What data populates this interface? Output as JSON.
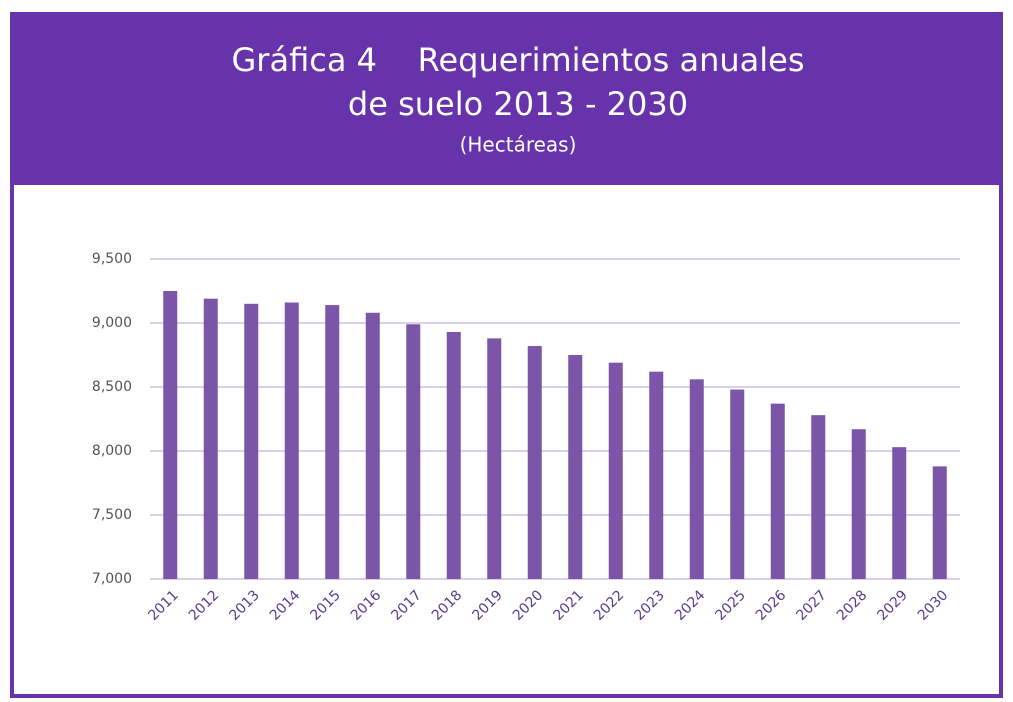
{
  "chart_data": {
    "type": "bar",
    "title": [
      "Gráfica 4    Requerimientos anuales",
      "de suelo 2013 - 2030"
    ],
    "subtitle": "(Hectáreas)",
    "categories": [
      "2011",
      "2012",
      "2013",
      "2014",
      "2015",
      "2016",
      "2017",
      "2018",
      "2019",
      "2020",
      "2021",
      "2022",
      "2023",
      "2024",
      "2025",
      "2026",
      "2027",
      "2028",
      "2029",
      "2030"
    ],
    "values": [
      9250,
      9190,
      9150,
      9160,
      9140,
      9080,
      8990,
      8930,
      8880,
      8820,
      8750,
      8690,
      8620,
      8560,
      8480,
      8370,
      8280,
      8170,
      8030,
      7880
    ],
    "color": "#7c55a8",
    "ylim": [
      7000,
      9500
    ],
    "yticks": [
      {
        "value": 7000,
        "label": "7,000"
      },
      {
        "value": 7500,
        "label": "7,500"
      },
      {
        "value": 8000,
        "label": "8,000"
      },
      {
        "value": 8500,
        "label": "8,500"
      },
      {
        "value": 9000,
        "label": "9,000"
      },
      {
        "value": 9500,
        "label": "9,500"
      }
    ],
    "grid": true
  }
}
